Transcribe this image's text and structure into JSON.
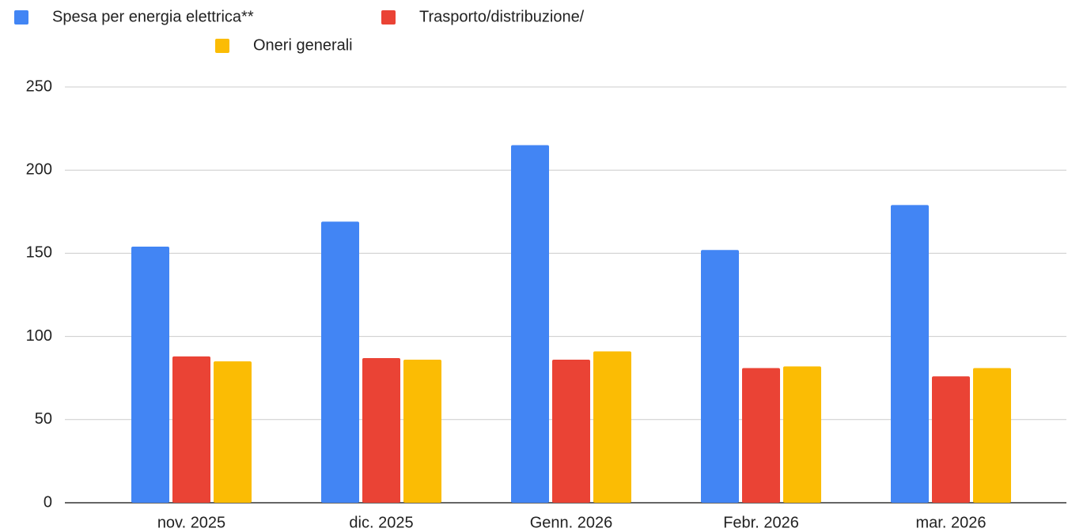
{
  "chart_data": {
    "type": "bar",
    "categories": [
      "nov. 2025",
      "dic. 2025",
      "Genn. 2026",
      "Febr. 2026",
      "mar. 2026"
    ],
    "series": [
      {
        "name": "Spesa per energia elettrica**",
        "color": "#4285f4",
        "values": [
          154,
          169,
          215,
          152,
          179
        ]
      },
      {
        "name": "Trasporto/distribuzione/",
        "color": "#ea4335",
        "values": [
          88,
          87,
          86,
          81,
          76
        ]
      },
      {
        "name": "Oneri generali",
        "color": "#fbbc04",
        "values": [
          85,
          86,
          91,
          82,
          81
        ]
      }
    ],
    "ylim": [
      0,
      250
    ],
    "yticks": [
      0,
      50,
      100,
      150,
      200,
      250
    ],
    "grid": true,
    "legend": "top"
  }
}
